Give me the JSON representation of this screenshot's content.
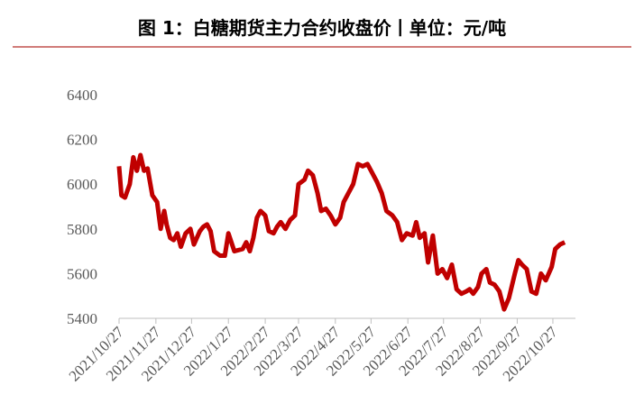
{
  "chart_data": {
    "type": "line",
    "title": "图 1：白糖期货主力合约收盘价丨单位：元/吨",
    "x": [
      "2021/10/27",
      "2021/10/29",
      "2021/11/01",
      "2021/11/05",
      "2021/11/08",
      "2021/11/11",
      "2021/11/14",
      "2021/11/17",
      "2021/11/20",
      "2021/11/24",
      "2021/11/28",
      "2021/12/01",
      "2021/12/04",
      "2021/12/06",
      "2021/12/09",
      "2021/12/12",
      "2021/12/15",
      "2021/12/18",
      "2021/12/22",
      "2021/12/26",
      "2021/12/29",
      "2022/01/03",
      "2022/01/06",
      "2022/01/09",
      "2022/01/12",
      "2022/01/15",
      "2022/01/20",
      "2022/01/24",
      "2022/01/27",
      "2022/02/01",
      "2022/02/08",
      "2022/02/11",
      "2022/02/14",
      "2022/02/17",
      "2022/02/20",
      "2022/02/23",
      "2022/02/27",
      "2022/03/02",
      "2022/03/06",
      "2022/03/09",
      "2022/03/12",
      "2022/03/16",
      "2022/03/20",
      "2022/03/24",
      "2022/03/27",
      "2022/04/01",
      "2022/04/04",
      "2022/04/08",
      "2022/04/12",
      "2022/04/15",
      "2022/04/19",
      "2022/04/23",
      "2022/04/27",
      "2022/05/01",
      "2022/05/04",
      "2022/05/08",
      "2022/05/12",
      "2022/05/16",
      "2022/05/20",
      "2022/05/24",
      "2022/05/27",
      "2022/06/01",
      "2022/06/05",
      "2022/06/09",
      "2022/06/14",
      "2022/06/18",
      "2022/06/22",
      "2022/06/26",
      "2022/07/01",
      "2022/07/04",
      "2022/07/07",
      "2022/07/11",
      "2022/07/14",
      "2022/07/18",
      "2022/07/22",
      "2022/07/26",
      "2022/07/30",
      "2022/08/03",
      "2022/08/07",
      "2022/08/11",
      "2022/08/15",
      "2022/08/18",
      "2022/08/21",
      "2022/08/25",
      "2022/08/28",
      "2022/09/01",
      "2022/09/04",
      "2022/09/08",
      "2022/09/12",
      "2022/09/16",
      "2022/09/20",
      "2022/09/25",
      "2022/09/28",
      "2022/10/01",
      "2022/10/05",
      "2022/10/09",
      "2022/10/13",
      "2022/10/17",
      "2022/10/21",
      "2022/10/26",
      "2022/10/29",
      "2022/11/02",
      "2022/11/06"
    ],
    "series": [
      {
        "name": "白糖期货主力合约收盘价",
        "color": "#c00000",
        "values": [
          6080,
          5950,
          5940,
          6000,
          6120,
          6060,
          6130,
          6060,
          6070,
          5950,
          5920,
          5800,
          5880,
          5820,
          5760,
          5750,
          5780,
          5720,
          5780,
          5800,
          5730,
          5790,
          5810,
          5820,
          5790,
          5700,
          5680,
          5680,
          5780,
          5700,
          5710,
          5740,
          5700,
          5760,
          5850,
          5880,
          5860,
          5790,
          5780,
          5810,
          5830,
          5800,
          5840,
          5860,
          6000,
          6020,
          6060,
          6040,
          5960,
          5880,
          5890,
          5860,
          5820,
          5850,
          5920,
          5960,
          6000,
          6090,
          6080,
          6090,
          6060,
          6010,
          5960,
          5880,
          5860,
          5830,
          5750,
          5780,
          5770,
          5830,
          5760,
          5780,
          5650,
          5770,
          5600,
          5620,
          5580,
          5640,
          5530,
          5510,
          5520,
          5530,
          5510,
          5540,
          5600,
          5620,
          5560,
          5550,
          5520,
          5440,
          5490,
          5600,
          5660,
          5640,
          5620,
          5520,
          5510,
          5600,
          5570,
          5630,
          5710,
          5730,
          5740
        ]
      }
    ],
    "xlim": [
      "2021/10/27",
      "2022/11/15"
    ],
    "xticks": [
      "2021/10/27",
      "2021/11/27",
      "2021/12/27",
      "2022/1/27",
      "2022/2/27",
      "2022/3/27",
      "2022/4/27",
      "2022/5/27",
      "2022/6/27",
      "2022/7/27",
      "2022/8/27",
      "2022/9/27",
      "2022/10/27"
    ],
    "ylim": [
      5400,
      6400
    ],
    "yticks": [
      5400,
      5600,
      5800,
      6000,
      6200,
      6400
    ],
    "grid": false
  }
}
